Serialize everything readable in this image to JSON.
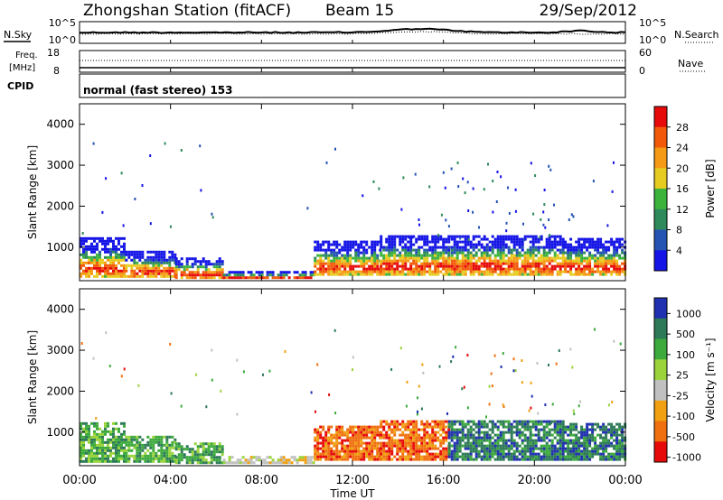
{
  "header": {
    "title": "Zhongshan Station (fitACF)",
    "beam": "Beam 15",
    "date": "29/Sep/2012"
  },
  "noise_panel": {
    "left_label": "N.Sky",
    "right_label": "N.Search",
    "left_ticks": [
      "10^5",
      "10^0"
    ],
    "right_ticks": [
      "10^5",
      "10^0"
    ]
  },
  "freq_panel": {
    "left_label_1": "Freq.",
    "left_label_2": "[MHz]",
    "right_label": "Nave",
    "left_ticks": [
      "18",
      "8"
    ],
    "right_ticks": [
      "60",
      "0"
    ]
  },
  "cpid": {
    "label": "CPID",
    "text": "normal (fast stereo) 153"
  },
  "chart_data": [
    {
      "type": "heatmap",
      "name": "Power",
      "ylabel": "Slant Range [km]",
      "xlabel": "Time UT",
      "x_ticks": [
        "00:00",
        "04:00",
        "08:00",
        "12:00",
        "16:00",
        "20:00",
        "00:00"
      ],
      "y_ticks": [
        "1000",
        "2000",
        "3000",
        "4000"
      ],
      "ylim": [
        180,
        4500
      ],
      "xlim_hours": [
        0,
        24
      ],
      "colorbar_label": "Power [dB]",
      "colorbar_ticks": [
        "4",
        "8",
        "12",
        "16",
        "20",
        "24",
        "28"
      ],
      "colors": [
        "#1414e6",
        "#2553b3",
        "#2e8a5a",
        "#3cb43c",
        "#e6cc20",
        "#f59a14",
        "#f25a0a",
        "#e60a0a"
      ],
      "segments": [
        {
          "t": [
            0.0,
            2.0
          ],
          "r": [
            250,
            1250
          ]
        },
        {
          "t": [
            2.0,
            4.2
          ],
          "r": [
            250,
            950
          ]
        },
        {
          "t": [
            4.2,
            6.3
          ],
          "r": [
            220,
            800
          ]
        },
        {
          "t": [
            6.3,
            10.3
          ],
          "r": [
            220,
            450
          ]
        },
        {
          "t": [
            10.3,
            13.2
          ],
          "r": [
            300,
            1200
          ]
        },
        {
          "t": [
            13.2,
            16.2
          ],
          "r": [
            300,
            1350
          ]
        },
        {
          "t": [
            16.2,
            21.3
          ],
          "r": [
            300,
            1350
          ]
        },
        {
          "t": [
            21.3,
            24.0
          ],
          "r": [
            300,
            1250
          ]
        }
      ]
    },
    {
      "type": "heatmap",
      "name": "Velocity",
      "ylabel": "Slant Range [km]",
      "xlabel": "Time UT",
      "x_ticks": [
        "00:00",
        "04:00",
        "08:00",
        "12:00",
        "16:00",
        "20:00",
        "00:00"
      ],
      "y_ticks": [
        "1000",
        "2000",
        "3000",
        "4000"
      ],
      "ylim": [
        180,
        4500
      ],
      "xlim_hours": [
        0,
        24
      ],
      "colorbar_label": "Velocity [m s⁻¹]",
      "colorbar_ticks": [
        "1000",
        "500",
        "100",
        "25",
        "-25",
        "-100",
        "-500",
        "-1000"
      ],
      "colors": [
        "#2030b0",
        "#2e7a58",
        "#3caa3c",
        "#9ad43a",
        "#c0c0c0",
        "#f0a010",
        "#f07010",
        "#e60a0a"
      ],
      "segments": [
        {
          "t": [
            0.0,
            2.0
          ],
          "r": [
            250,
            1250
          ]
        },
        {
          "t": [
            2.0,
            4.2
          ],
          "r": [
            250,
            950
          ]
        },
        {
          "t": [
            4.2,
            6.3
          ],
          "r": [
            220,
            800
          ]
        },
        {
          "t": [
            6.3,
            10.3
          ],
          "r": [
            220,
            450
          ]
        },
        {
          "t": [
            10.3,
            13.2
          ],
          "r": [
            300,
            1200
          ]
        },
        {
          "t": [
            13.2,
            16.2
          ],
          "r": [
            300,
            1350
          ]
        },
        {
          "t": [
            16.2,
            21.3
          ],
          "r": [
            300,
            1350
          ]
        },
        {
          "t": [
            21.3,
            24.0
          ],
          "r": [
            300,
            1250
          ]
        }
      ]
    }
  ]
}
